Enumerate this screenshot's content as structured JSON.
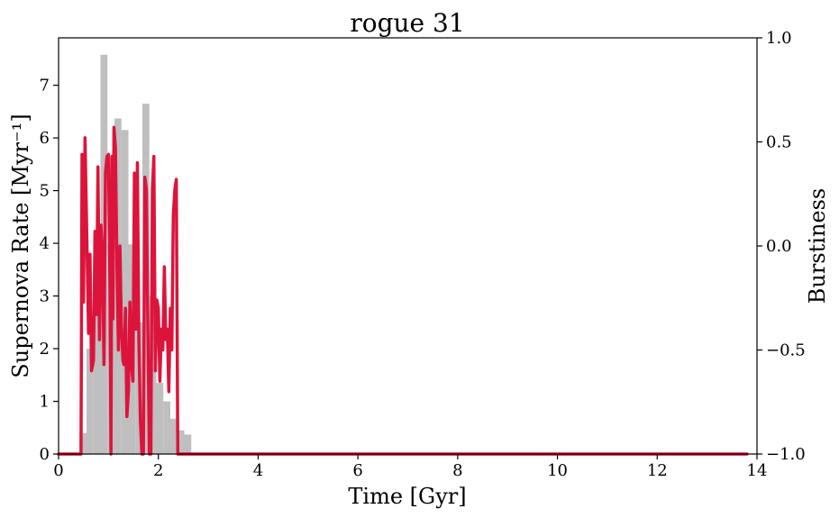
{
  "chart_data": {
    "type": "bar+line",
    "title": "rogue 31",
    "xlabel": "Time [Gyr]",
    "ylabel_left": "Supernova Rate [Myr⁻¹]",
    "ylabel_right": "Burstiness",
    "xlim": [
      0,
      14
    ],
    "ylim_left": [
      0,
      7.9
    ],
    "ylim_right": [
      -1.0,
      1.0
    ],
    "x_ticks": [
      "0",
      "2",
      "4",
      "6",
      "8",
      "10",
      "12",
      "14"
    ],
    "y_left_ticks": [
      "0",
      "1",
      "2",
      "3",
      "4",
      "5",
      "6",
      "7"
    ],
    "y_right_ticks": [
      "−1.0",
      "−0.5",
      "0.0",
      "0.5",
      "1.0"
    ],
    "bar_width": 0.14,
    "bar_color": "#bfbfbf",
    "line_color": "#dc143c",
    "histogram": {
      "name": "Supernova Rate",
      "bins": [
        {
          "x": 0.49,
          "value": 0.4
        },
        {
          "x": 0.63,
          "value": 2.0
        },
        {
          "x": 0.77,
          "value": 3.88
        },
        {
          "x": 0.91,
          "value": 7.58
        },
        {
          "x": 1.05,
          "value": 4.0
        },
        {
          "x": 1.19,
          "value": 6.37
        },
        {
          "x": 1.33,
          "value": 6.15
        },
        {
          "x": 1.47,
          "value": 3.98
        },
        {
          "x": 1.61,
          "value": 2.5
        },
        {
          "x": 1.75,
          "value": 6.65
        },
        {
          "x": 1.89,
          "value": 3.0
        },
        {
          "x": 2.03,
          "value": 1.35
        },
        {
          "x": 2.17,
          "value": 1.0
        },
        {
          "x": 2.31,
          "value": 0.67
        },
        {
          "x": 2.45,
          "value": 0.45
        },
        {
          "x": 2.59,
          "value": 0.37
        }
      ]
    },
    "burstiness": {
      "name": "Burstiness",
      "x": [
        0,
        0.45,
        0.47,
        0.5,
        0.53,
        0.57,
        0.6,
        0.63,
        0.66,
        0.7,
        0.73,
        0.76,
        0.79,
        0.82,
        0.85,
        0.88,
        0.91,
        0.94,
        0.97,
        1.0,
        1.03,
        1.05,
        1.07,
        1.09,
        1.11,
        1.14,
        1.17,
        1.2,
        1.23,
        1.26,
        1.29,
        1.31,
        1.34,
        1.37,
        1.4,
        1.43,
        1.46,
        1.49,
        1.52,
        1.55,
        1.58,
        1.61,
        1.64,
        1.67,
        1.7,
        1.73,
        1.76,
        1.79,
        1.82,
        1.85,
        1.88,
        1.91,
        1.94,
        1.97,
        2.0,
        2.03,
        2.06,
        2.09,
        2.12,
        2.15,
        2.18,
        2.21,
        2.24,
        2.27,
        2.3,
        2.33,
        2.36,
        2.39,
        2.42,
        2.45,
        2.48,
        2.51,
        2.54,
        2.57,
        2.6,
        2.62,
        2.63,
        2.65,
        2.66,
        13.8
      ],
      "y": [
        -1.0,
        -1.0,
        0.44,
        -0.27,
        0.52,
        0.0,
        -0.42,
        -0.04,
        -0.6,
        -0.55,
        0.07,
        -0.33,
        0.38,
        -0.45,
        0.1,
        -0.05,
        -0.57,
        0.35,
        0.43,
        0.44,
        -0.2,
        -1.0,
        0.43,
        -0.35,
        0.57,
        0.47,
        -0.1,
        -0.5,
        0.0,
        -0.4,
        -0.55,
        -0.57,
        -0.3,
        -0.82,
        -0.7,
        -0.27,
        -0.57,
        -0.65,
        0.35,
        -0.4,
        0.4,
        -0.46,
        -0.84,
        -1.0,
        -1.0,
        0.33,
        0.27,
        -0.4,
        -1.0,
        -1.0,
        0.27,
        0.43,
        -0.6,
        -0.26,
        -0.3,
        -0.65,
        -0.4,
        -0.5,
        -0.1,
        -0.45,
        -0.4,
        -0.7,
        -0.3,
        -0.5,
        0.15,
        0.27,
        0.32,
        -1.0,
        -1.0,
        -1.0,
        -1.0,
        -1.0,
        -1.0,
        -1.0,
        -1.0,
        -1.0,
        -1.0,
        -1.0,
        -1.0,
        -1.0
      ]
    }
  }
}
